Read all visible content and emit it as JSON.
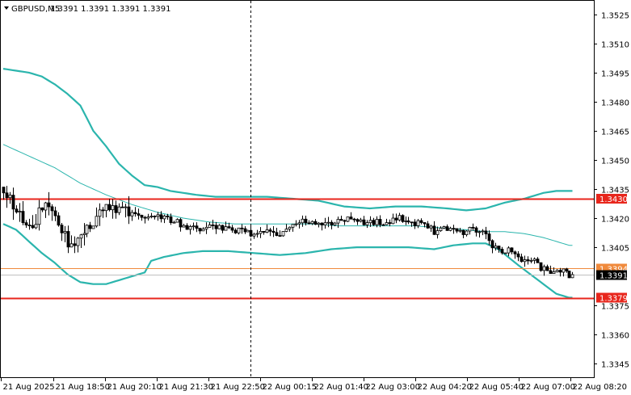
{
  "header": {
    "symbol": "GBPUSD,M5",
    "quote": "1.3391 1.3391 1.3391 1.3391"
  },
  "chart_data": {
    "type": "candlestick",
    "symbol": "GBPUSD",
    "timeframe": "M5",
    "ylim": [
      1.3338,
      1.3532
    ],
    "y_ticks": [
      "1.3525",
      "1.3510",
      "1.3495",
      "1.3480",
      "1.3465",
      "1.3450",
      "1.3435",
      "1.3420",
      "1.3405",
      "1.3375",
      "1.3360",
      "1.3345"
    ],
    "x_ticks": [
      "21 Aug 2025",
      "21 Aug 18:50",
      "21 Aug 20:10",
      "21 Aug 21:30",
      "21 Aug 22:50",
      "22 Aug 00:15",
      "22 Aug 01:40",
      "22 Aug 03:00",
      "22 Aug 04:20",
      "22 Aug 05:40",
      "22 Aug 07:00",
      "22 Aug 08:20"
    ],
    "bar_count": 178,
    "separator_bar": 77,
    "last_price": "1.3391",
    "horizontal_lines": [
      {
        "label": "1.3430",
        "value": 1.343,
        "color": "#e8261c",
        "style": "thick"
      },
      {
        "label": "1.3394",
        "value": 1.3394,
        "color": "#f08a3c",
        "style": "thin"
      },
      {
        "label": "1.3379",
        "value": 1.3379,
        "color": "#e8261c",
        "style": "thick"
      }
    ],
    "candles_anchor": [
      [
        0,
        1.3436
      ],
      [
        3,
        1.3428
      ],
      [
        6,
        1.342
      ],
      [
        9,
        1.3412
      ],
      [
        11,
        1.3423
      ],
      [
        14,
        1.3426
      ],
      [
        17,
        1.3418
      ],
      [
        20,
        1.3408
      ],
      [
        23,
        1.3409
      ],
      [
        26,
        1.3417
      ],
      [
        29,
        1.342
      ],
      [
        32,
        1.3424
      ],
      [
        35,
        1.3426
      ],
      [
        38,
        1.3424
      ],
      [
        41,
        1.3422
      ],
      [
        44,
        1.3421
      ],
      [
        47,
        1.342
      ],
      [
        50,
        1.342
      ],
      [
        53,
        1.3419
      ],
      [
        56,
        1.3416
      ],
      [
        59,
        1.3415
      ],
      [
        62,
        1.3415
      ],
      [
        65,
        1.3416
      ],
      [
        68,
        1.3415
      ],
      [
        71,
        1.3414
      ],
      [
        74,
        1.3413
      ],
      [
        77,
        1.3412
      ],
      [
        80,
        1.3412
      ],
      [
        83,
        1.3413
      ],
      [
        86,
        1.3412
      ],
      [
        88,
        1.3415
      ],
      [
        90,
        1.3417
      ],
      [
        93,
        1.3418
      ],
      [
        96,
        1.3418
      ],
      [
        99,
        1.3418
      ],
      [
        102,
        1.3418
      ],
      [
        105,
        1.3419
      ],
      [
        108,
        1.342
      ],
      [
        111,
        1.3418
      ],
      [
        114,
        1.3418
      ],
      [
        117,
        1.3418
      ],
      [
        120,
        1.3418
      ],
      [
        123,
        1.342
      ],
      [
        126,
        1.3419
      ],
      [
        129,
        1.3417
      ],
      [
        132,
        1.3416
      ],
      [
        134,
        1.3413
      ],
      [
        137,
        1.3414
      ],
      [
        140,
        1.3414
      ],
      [
        143,
        1.3413
      ],
      [
        146,
        1.3414
      ],
      [
        149,
        1.3413
      ],
      [
        152,
        1.3406
      ],
      [
        155,
        1.3403
      ],
      [
        158,
        1.3403
      ],
      [
        161,
        1.3397
      ],
      [
        164,
        1.3399
      ],
      [
        167,
        1.3394
      ],
      [
        170,
        1.3393
      ],
      [
        173,
        1.3393
      ],
      [
        176,
        1.3391
      ]
    ],
    "bollinger_upper": [
      [
        0,
        1.3497
      ],
      [
        4,
        1.3496
      ],
      [
        8,
        1.3495
      ],
      [
        12,
        1.3493
      ],
      [
        16,
        1.3489
      ],
      [
        20,
        1.3484
      ],
      [
        24,
        1.3478
      ],
      [
        28,
        1.3465
      ],
      [
        32,
        1.3457
      ],
      [
        36,
        1.3448
      ],
      [
        40,
        1.3442
      ],
      [
        44,
        1.3437
      ],
      [
        48,
        1.3436
      ],
      [
        52,
        1.3434
      ],
      [
        56,
        1.3433
      ],
      [
        60,
        1.3432
      ],
      [
        66,
        1.3431
      ],
      [
        74,
        1.3431
      ],
      [
        82,
        1.3431
      ],
      [
        90,
        1.343
      ],
      [
        98,
        1.3429
      ],
      [
        106,
        1.3426
      ],
      [
        114,
        1.3425
      ],
      [
        122,
        1.3426
      ],
      [
        130,
        1.3426
      ],
      [
        138,
        1.3425
      ],
      [
        144,
        1.3424
      ],
      [
        150,
        1.3425
      ],
      [
        156,
        1.3428
      ],
      [
        162,
        1.343
      ],
      [
        168,
        1.3433
      ],
      [
        172,
        1.3434
      ],
      [
        176,
        1.3434
      ]
    ],
    "bollinger_middle": [
      [
        0,
        1.3458
      ],
      [
        8,
        1.3452
      ],
      [
        16,
        1.3446
      ],
      [
        24,
        1.3438
      ],
      [
        32,
        1.3432
      ],
      [
        40,
        1.3427
      ],
      [
        48,
        1.3423
      ],
      [
        56,
        1.342
      ],
      [
        64,
        1.3418
      ],
      [
        72,
        1.3417
      ],
      [
        80,
        1.3417
      ],
      [
        88,
        1.3417
      ],
      [
        96,
        1.3417
      ],
      [
        104,
        1.3416
      ],
      [
        112,
        1.3416
      ],
      [
        120,
        1.3416
      ],
      [
        128,
        1.3416
      ],
      [
        136,
        1.3415
      ],
      [
        144,
        1.3414
      ],
      [
        150,
        1.3413
      ],
      [
        156,
        1.3413
      ],
      [
        162,
        1.3412
      ],
      [
        168,
        1.341
      ],
      [
        174,
        1.3407
      ],
      [
        176,
        1.3406
      ]
    ],
    "bollinger_lower": [
      [
        0,
        1.3417
      ],
      [
        4,
        1.3414
      ],
      [
        8,
        1.3408
      ],
      [
        12,
        1.3402
      ],
      [
        16,
        1.3397
      ],
      [
        20,
        1.3391
      ],
      [
        24,
        1.3387
      ],
      [
        28,
        1.3386
      ],
      [
        32,
        1.3386
      ],
      [
        36,
        1.3388
      ],
      [
        40,
        1.339
      ],
      [
        44,
        1.3392
      ],
      [
        46,
        1.3398
      ],
      [
        50,
        1.34
      ],
      [
        56,
        1.3402
      ],
      [
        62,
        1.3403
      ],
      [
        70,
        1.3403
      ],
      [
        78,
        1.3402
      ],
      [
        86,
        1.3401
      ],
      [
        94,
        1.3402
      ],
      [
        102,
        1.3404
      ],
      [
        110,
        1.3405
      ],
      [
        118,
        1.3405
      ],
      [
        126,
        1.3405
      ],
      [
        134,
        1.3404
      ],
      [
        140,
        1.3406
      ],
      [
        146,
        1.3407
      ],
      [
        150,
        1.3407
      ],
      [
        154,
        1.3404
      ],
      [
        160,
        1.3396
      ],
      [
        164,
        1.3391
      ],
      [
        168,
        1.3386
      ],
      [
        172,
        1.3381
      ],
      [
        176,
        1.3379
      ]
    ]
  },
  "colors": {
    "bands": "#2bb5ad",
    "middle": "#2bb5ad",
    "candle_up": "#ffffff",
    "candle_down": "#000000",
    "separator": "#000000",
    "price_tag_bg": "#000000",
    "grid_frame": "#000000"
  }
}
